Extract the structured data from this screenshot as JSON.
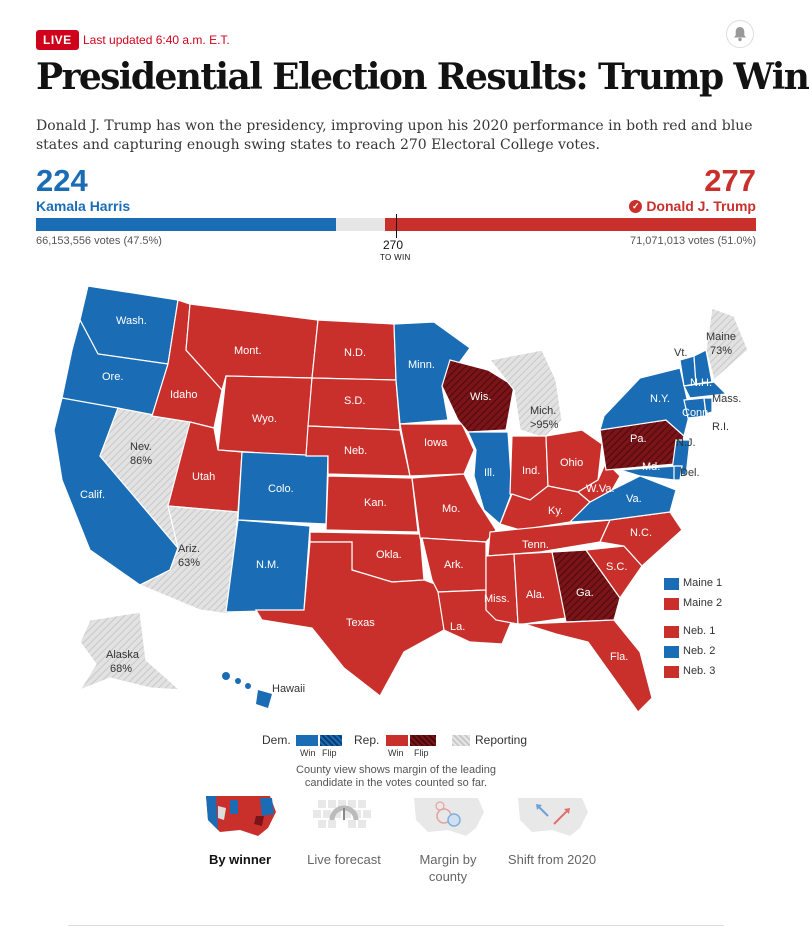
{
  "header": {
    "live_badge": "LIVE",
    "updated": "Last updated 6:40 a.m. E.T.",
    "bell_icon": "bell-icon",
    "title": "Presidential Election Results: Trump Wins",
    "dek": "Donald J. Trump has won the presidency, improving upon his 2020 performance in both red and blue states and capturing enough swing states to reach 270 Electoral College votes."
  },
  "tally": {
    "dem": {
      "electoral": "224",
      "name": "Kamala Harris",
      "votes": "66,153,556 votes (47.5%)",
      "ev_value": 224,
      "color": "#1a6db5"
    },
    "rep": {
      "electoral": "277",
      "name": "Donald J. Trump",
      "votes": "71,071,013 votes (51.0%)",
      "ev_value": 277,
      "color": "#c9302c"
    },
    "threshold": "270",
    "threshold_label": "TO WIN",
    "total_ev": 538,
    "threshold_value": 270
  },
  "map": {
    "colors": {
      "dem": "#1a6db5",
      "rep": "#c9302c",
      "flip_rep": "#7a1418",
      "reporting": "#dedede"
    },
    "labels": {
      "wash": "Wash.",
      "ore": "Ore.",
      "calif": "Calif.",
      "nev": "Nev.",
      "nev_pct": "86%",
      "idaho": "Idaho",
      "mont": "Mont.",
      "wyo": "Wyo.",
      "utah": "Utah",
      "ariz": "Ariz.",
      "ariz_pct": "63%",
      "colo": "Colo.",
      "nm": "N.M.",
      "nd": "N.D.",
      "sd": "S.D.",
      "neb": "Neb.",
      "kan": "Kan.",
      "okla": "Okla.",
      "texas": "Texas",
      "minn": "Minn.",
      "iowa": "Iowa",
      "mo": "Mo.",
      "ark": "Ark.",
      "la": "La.",
      "wis": "Wis.",
      "ill": "Ill.",
      "mich": "Mich.",
      "mich_pct": ">95%",
      "ind": "Ind.",
      "ohio": "Ohio",
      "ky": "Ky.",
      "tenn": "Tenn.",
      "miss": "Miss.",
      "ala": "Ala.",
      "ga": "Ga.",
      "fla": "Fla.",
      "sc": "S.C.",
      "nc": "N.C.",
      "va": "Va.",
      "wva": "W.Va.",
      "pa": "Pa.",
      "ny": "N.Y.",
      "vt": "Vt.",
      "nh": "N.H.",
      "maine": "Maine",
      "maine_pct": "73%",
      "mass": "Mass.",
      "conn": "Conn.",
      "ri": "R.I.",
      "nj": "N.J.",
      "md": "Md.",
      "del": "Del.",
      "alaska": "Alaska",
      "alaska_pct": "68%",
      "hawaii": "Hawaii"
    },
    "districts": [
      {
        "label": "Maine 1",
        "party": "dem"
      },
      {
        "label": "Maine 2",
        "party": "rep"
      },
      {
        "label": "Neb. 1",
        "party": "rep"
      },
      {
        "label": "Neb. 2",
        "party": "dem"
      },
      {
        "label": "Neb. 3",
        "party": "rep"
      }
    ]
  },
  "key": {
    "dem": "Dem.",
    "rep": "Rep.",
    "win": "Win",
    "flip": "Flip",
    "reporting": "Reporting",
    "note": "County view shows margin of the leading candidate in the votes counted so far."
  },
  "views": [
    {
      "label": "By winner",
      "icon": "winner-map-icon"
    },
    {
      "label": "Live forecast",
      "icon": "forecast-gauge-icon"
    },
    {
      "label": "Margin by county",
      "icon": "bubble-map-icon"
    },
    {
      "label": "Shift from 2020",
      "icon": "shift-arrows-icon"
    }
  ]
}
